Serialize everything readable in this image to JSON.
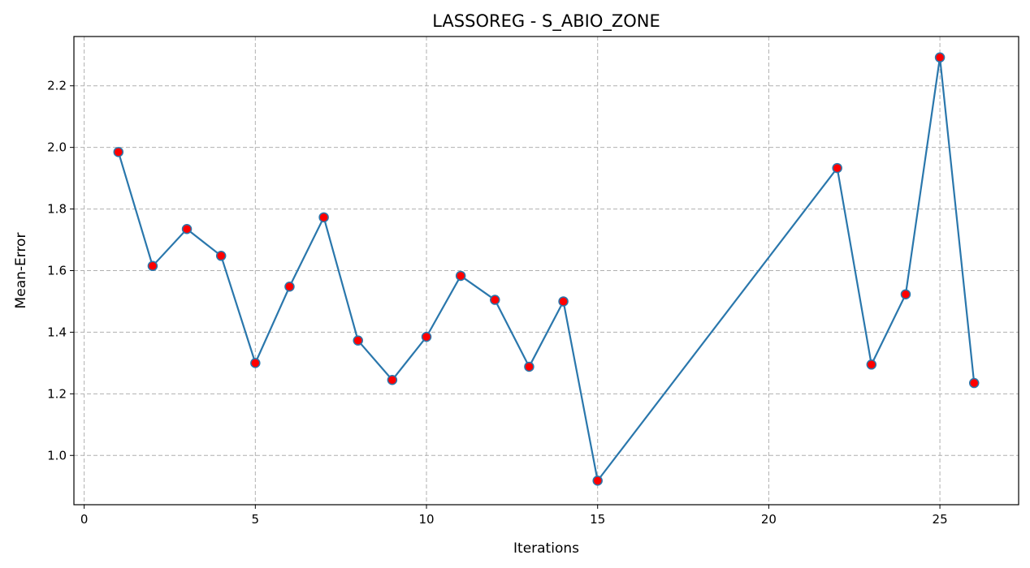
{
  "chart_data": {
    "type": "line",
    "title": "LASSOREG - S_ABIO_ZONE",
    "xlabel": "Iterations",
    "ylabel": "Mean-Error",
    "xlim": [
      -0.3,
      27.3
    ],
    "ylim": [
      0.84,
      2.36
    ],
    "xticks": [
      0,
      5,
      10,
      15,
      20,
      25
    ],
    "xtick_labels": [
      "0",
      "5",
      "10",
      "15",
      "20",
      "25"
    ],
    "yticks": [
      1.0,
      1.2,
      1.4,
      1.6,
      1.8,
      2.0,
      2.2
    ],
    "ytick_labels": [
      "1.0",
      "1.2",
      "1.4",
      "1.6",
      "1.8",
      "2.0",
      "2.2"
    ],
    "grid": true,
    "line_color": "#2a77ac",
    "marker_color": "#ff0000",
    "series": [
      {
        "x": [
          1,
          2,
          3,
          4,
          5,
          6,
          7,
          8,
          9,
          10,
          11,
          12,
          13,
          14,
          15,
          22,
          23,
          24,
          25,
          26
        ],
        "y": [
          1.985,
          1.615,
          1.735,
          1.648,
          1.3,
          1.548,
          1.773,
          1.373,
          1.245,
          1.385,
          1.583,
          1.505,
          1.288,
          1.5,
          0.918,
          1.933,
          1.295,
          1.523,
          2.292,
          1.235
        ]
      }
    ]
  }
}
